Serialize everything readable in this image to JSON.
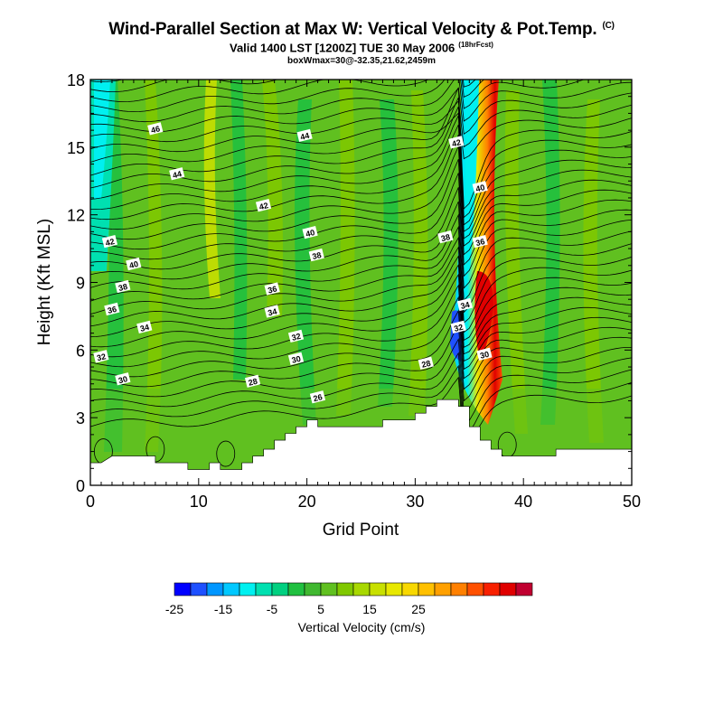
{
  "titles": {
    "main": "Wind-Parallel Section at Max W: Vertical Velocity & Pot.Temp.",
    "mark": "(C)",
    "valid": "Valid 1400 LST [1200Z] TUE 30 May 2006",
    "valid_tag": "(18hrFcst)",
    "box": "boxWmax=30@-32.35,21.62,2459m"
  },
  "chart_data": {
    "type": "heatmap",
    "title": "Wind-Parallel Section at Max W: Vertical Velocity & Pot.Temp.",
    "xlabel": "Grid Point",
    "ylabel": "Height (Kft MSL)",
    "xlim": [
      0,
      50
    ],
    "ylim": [
      0,
      18
    ],
    "x_ticks": [
      0,
      10,
      20,
      30,
      40,
      50
    ],
    "y_ticks": [
      0,
      3,
      6,
      9,
      12,
      15,
      18
    ],
    "terrain": [
      [
        0,
        1
      ],
      [
        1,
        1
      ],
      [
        2,
        1.3
      ],
      [
        3,
        1.3
      ],
      [
        5,
        1.3
      ],
      [
        6,
        1.3
      ],
      [
        6,
        1
      ],
      [
        9,
        1
      ],
      [
        9,
        0.7
      ],
      [
        10,
        0.7
      ],
      [
        11,
        0.7
      ],
      [
        11,
        1
      ],
      [
        12,
        1
      ],
      [
        12,
        0.7
      ],
      [
        14,
        0.7
      ],
      [
        14,
        1
      ],
      [
        15,
        1
      ],
      [
        15,
        1.3
      ],
      [
        16,
        1.3
      ],
      [
        16,
        1.6
      ],
      [
        17,
        1.6
      ],
      [
        17,
        2
      ],
      [
        18,
        2
      ],
      [
        18,
        2.3
      ],
      [
        19,
        2.3
      ],
      [
        19,
        2.6
      ],
      [
        20,
        2.6
      ],
      [
        20,
        2.9
      ],
      [
        21,
        2.9
      ],
      [
        21,
        2.6
      ],
      [
        26,
        2.6
      ],
      [
        27,
        2.6
      ],
      [
        27,
        2.9
      ],
      [
        29,
        2.9
      ],
      [
        30,
        2.9
      ],
      [
        30,
        3.2
      ],
      [
        31,
        3.2
      ],
      [
        31,
        3.5
      ],
      [
        32,
        3.5
      ],
      [
        32,
        3.8
      ],
      [
        34,
        3.8
      ],
      [
        34,
        3.5
      ],
      [
        35,
        3.5
      ],
      [
        35,
        2.6
      ],
      [
        36,
        2.6
      ],
      [
        36,
        2.0
      ],
      [
        37,
        2.0
      ],
      [
        37,
        1.6
      ],
      [
        38,
        1.6
      ],
      [
        38,
        1.3
      ],
      [
        42,
        1.3
      ],
      [
        43,
        1.3
      ],
      [
        43,
        1.6
      ],
      [
        49,
        1.6
      ],
      [
        50,
        1.6
      ]
    ],
    "theta_labels": [
      {
        "v": "46",
        "x": 6,
        "y": 15.8
      },
      {
        "v": "44",
        "x": 19.8,
        "y": 15.5
      },
      {
        "v": "44",
        "x": 8,
        "y": 13.8
      },
      {
        "v": "42",
        "x": 16,
        "y": 12.4
      },
      {
        "v": "42",
        "x": 1.8,
        "y": 10.8
      },
      {
        "v": "42",
        "x": 33.8,
        "y": 15.2
      },
      {
        "v": "40",
        "x": 20.3,
        "y": 11.2
      },
      {
        "v": "40",
        "x": 4,
        "y": 9.8
      },
      {
        "v": "40",
        "x": 36,
        "y": 13.2
      },
      {
        "v": "38",
        "x": 20.9,
        "y": 10.2
      },
      {
        "v": "38",
        "x": 3,
        "y": 8.8
      },
      {
        "v": "38",
        "x": 32.8,
        "y": 11
      },
      {
        "v": "36",
        "x": 16.8,
        "y": 8.7
      },
      {
        "v": "36",
        "x": 2,
        "y": 7.8
      },
      {
        "v": "36",
        "x": 36,
        "y": 10.8
      },
      {
        "v": "34",
        "x": 16.8,
        "y": 7.7
      },
      {
        "v": "34",
        "x": 5,
        "y": 7
      },
      {
        "v": "34",
        "x": 34.6,
        "y": 8
      },
      {
        "v": "32",
        "x": 19,
        "y": 6.6
      },
      {
        "v": "32",
        "x": 1,
        "y": 5.7
      },
      {
        "v": "32",
        "x": 34,
        "y": 7
      },
      {
        "v": "30",
        "x": 19,
        "y": 5.6
      },
      {
        "v": "30",
        "x": 3,
        "y": 4.7
      },
      {
        "v": "30",
        "x": 36.4,
        "y": 5.8
      },
      {
        "v": "28",
        "x": 15,
        "y": 4.6
      },
      {
        "v": "28",
        "x": 31,
        "y": 5.4
      },
      {
        "v": "26",
        "x": 21,
        "y": 3.9
      }
    ]
  },
  "colorbar": {
    "title": "Vertical Velocity (cm/s)",
    "tick_labels": [
      "-25",
      "-15",
      "-5",
      "5",
      "15",
      "25"
    ],
    "colors": [
      "#0000ff",
      "#1e50ff",
      "#0096ff",
      "#00c8ff",
      "#00f0f0",
      "#00e0b0",
      "#00d080",
      "#20c040",
      "#40b830",
      "#60c020",
      "#80c800",
      "#a8d800",
      "#c8e000",
      "#e8e800",
      "#f8d800",
      "#ffc000",
      "#ffa000",
      "#ff8000",
      "#ff5000",
      "#f82000",
      "#e00000",
      "#c00030"
    ]
  }
}
